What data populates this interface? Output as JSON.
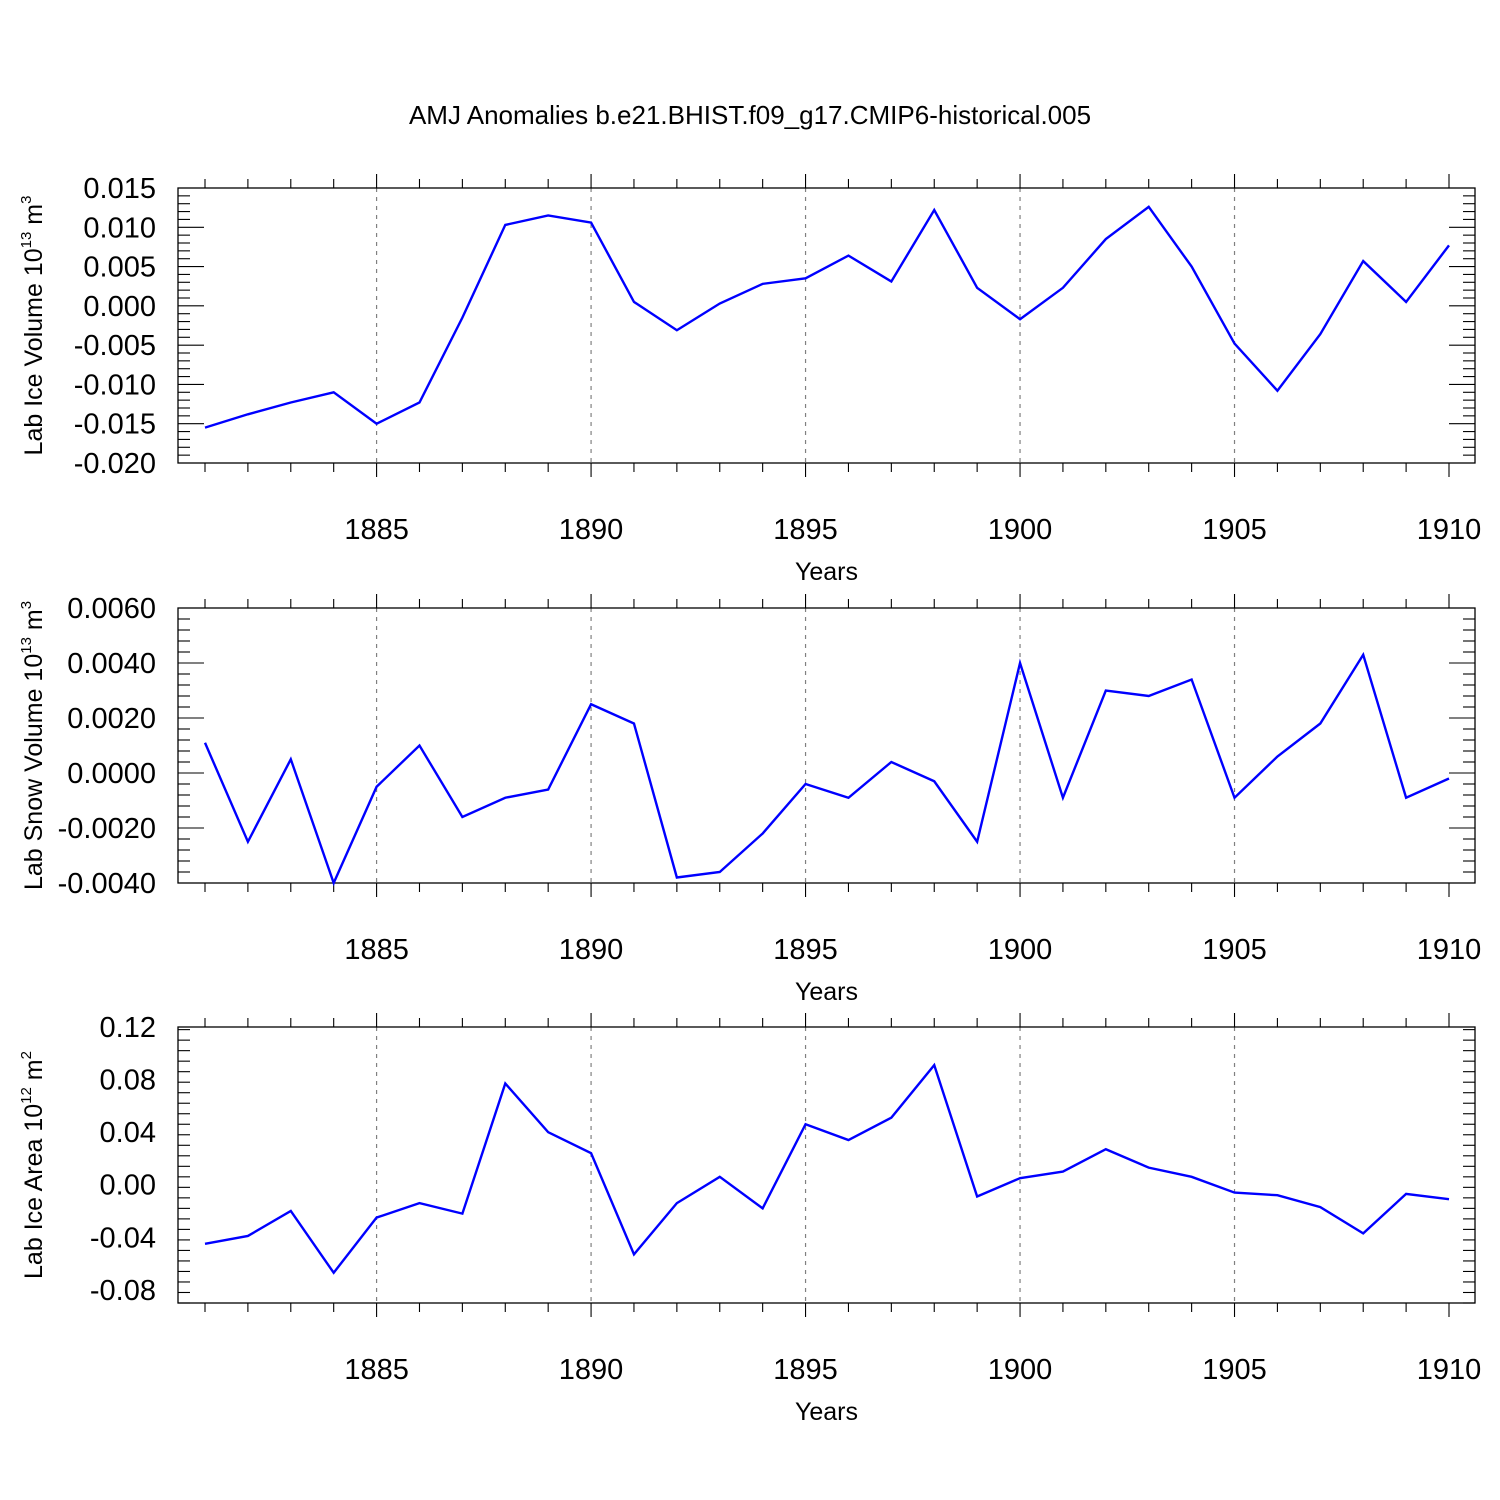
{
  "title": "AMJ Anomalies b.e21.BHIST.f09_g17.CMIP6-historical.005",
  "colors": {
    "line": "#0000ff",
    "axis": "#000000",
    "grid": "#808080"
  },
  "chart_data": [
    {
      "type": "line",
      "ylabel": {
        "text": "Lab Ice Volume 10",
        "exp": "13",
        "unit": " m",
        "unit_exp": "3"
      },
      "xlabel": "Years",
      "xlim": [
        1881,
        1910
      ],
      "ylim": [
        -0.02,
        0.015
      ],
      "x_ticks": [
        "1885",
        "1890",
        "1895",
        "1900",
        "1905",
        "1910"
      ],
      "y_ticks": [
        "-0.020",
        "-0.015",
        "-0.010",
        "-0.005",
        "0.000",
        "0.005",
        "0.010",
        "0.015"
      ],
      "grid": "vertical dashed",
      "series": [
        {
          "name": "Lab Ice Volume",
          "x": [
            1881,
            1882,
            1883,
            1884,
            1885,
            1886,
            1887,
            1888,
            1889,
            1890,
            1891,
            1892,
            1893,
            1894,
            1895,
            1896,
            1897,
            1898,
            1899,
            1900,
            1901,
            1902,
            1903,
            1904,
            1905,
            1906,
            1907,
            1908,
            1909,
            1910
          ],
          "values": [
            -0.0155,
            -0.0138,
            -0.0123,
            -0.011,
            -0.015,
            -0.0123,
            -0.0015,
            0.0103,
            0.0115,
            0.0106,
            0.0005,
            -0.0031,
            0.0003,
            0.0028,
            0.0035,
            0.0064,
            0.0031,
            0.0122,
            0.0023,
            -0.0017,
            0.0023,
            0.0085,
            0.0126,
            0.005,
            -0.0048,
            -0.0108,
            -0.0036,
            0.0057,
            0.0005,
            0.0077
          ]
        }
      ]
    },
    {
      "type": "line",
      "ylabel": {
        "text": "Lab Snow Volume 10",
        "exp": "13",
        "unit": " m",
        "unit_exp": "3"
      },
      "xlabel": "Years",
      "xlim": [
        1881,
        1910
      ],
      "ylim": [
        -0.004,
        0.006
      ],
      "x_ticks": [
        "1885",
        "1890",
        "1895",
        "1900",
        "1905",
        "1910"
      ],
      "y_ticks": [
        "-0.0040",
        "-0.0020",
        "0.0000",
        "0.0020",
        "0.0040",
        "0.0060"
      ],
      "grid": "vertical dashed",
      "series": [
        {
          "name": "Lab Snow Volume",
          "x": [
            1881,
            1882,
            1883,
            1884,
            1885,
            1886,
            1887,
            1888,
            1889,
            1890,
            1891,
            1892,
            1893,
            1894,
            1895,
            1896,
            1897,
            1898,
            1899,
            1900,
            1901,
            1902,
            1903,
            1904,
            1905,
            1906,
            1907,
            1908,
            1909,
            1910
          ],
          "values": [
            0.0011,
            -0.0025,
            0.0005,
            -0.004,
            -0.0005,
            0.001,
            -0.0016,
            -0.0009,
            -0.0006,
            0.0025,
            0.0018,
            -0.0038,
            -0.0036,
            -0.0022,
            -0.0004,
            -0.0009,
            0.0004,
            -0.0003,
            -0.0025,
            0.004,
            -0.0009,
            0.003,
            0.0028,
            0.0034,
            -0.0009,
            0.0006,
            0.0018,
            0.0043,
            -0.0009,
            -0.0002
          ]
        }
      ]
    },
    {
      "type": "line",
      "ylabel": {
        "text": "Lab Ice Area 10",
        "exp": "12",
        "unit": " m",
        "unit_exp": "2"
      },
      "xlabel": "Years",
      "xlim": [
        1881,
        1910
      ],
      "ylim": [
        -0.09,
        0.12
      ],
      "x_ticks": [
        "1885",
        "1890",
        "1895",
        "1900",
        "1905",
        "1910"
      ],
      "y_ticks": [
        "-0.08",
        "-0.04",
        "0.00",
        "0.04",
        "0.08",
        "0.12"
      ],
      "grid": "vertical dashed",
      "series": [
        {
          "name": "Lab Ice Area",
          "x": [
            1881,
            1882,
            1883,
            1884,
            1885,
            1886,
            1887,
            1888,
            1889,
            1890,
            1891,
            1892,
            1893,
            1894,
            1895,
            1896,
            1897,
            1898,
            1899,
            1900,
            1901,
            1902,
            1903,
            1904,
            1905,
            1906,
            1907,
            1908,
            1909,
            1910
          ],
          "values": [
            -0.045,
            -0.039,
            -0.02,
            -0.067,
            -0.025,
            -0.014,
            -0.022,
            0.077,
            0.04,
            0.024,
            -0.053,
            -0.014,
            0.006,
            -0.018,
            0.046,
            0.034,
            0.051,
            0.091,
            -0.009,
            0.005,
            0.01,
            0.027,
            0.013,
            0.006,
            -0.006,
            -0.008,
            -0.017,
            -0.037,
            -0.007,
            -0.011
          ]
        }
      ]
    }
  ]
}
